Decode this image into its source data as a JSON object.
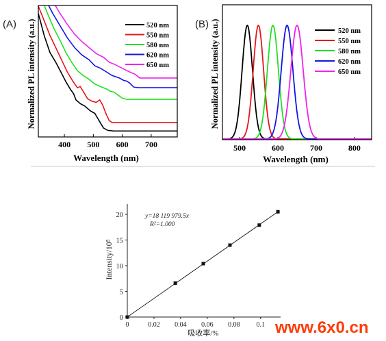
{
  "figure": {
    "panel_a_label": "(A)",
    "panel_b_label": "(B)",
    "watermark": "www.6x0.cn"
  },
  "chart_data": [
    {
      "id": "A",
      "type": "line",
      "title": "",
      "xlabel": "Wavelength (nm)",
      "ylabel": "Normalized PL intensity (a.u.)",
      "xlim": [
        310,
        790
      ],
      "x_ticks": [
        400,
        500,
        600,
        700
      ],
      "y_ticks": [],
      "legend_position": "top-right",
      "grid": false,
      "series": [
        {
          "name": "520 nm",
          "color": "#000000",
          "points": [
            [
              310,
              0.98
            ],
            [
              330,
              0.8
            ],
            [
              350,
              0.66
            ],
            [
              370,
              0.58
            ],
            [
              390,
              0.49
            ],
            [
              405,
              0.42
            ],
            [
              420,
              0.36
            ],
            [
              432,
              0.32
            ],
            [
              440,
              0.27
            ],
            [
              455,
              0.24
            ],
            [
              470,
              0.22
            ],
            [
              490,
              0.18
            ],
            [
              505,
              0.16
            ],
            [
              515,
              0.12
            ],
            [
              525,
              0.08
            ],
            [
              535,
              0.04
            ],
            [
              550,
              0.02
            ],
            [
              570,
              0.015
            ],
            [
              600,
              0.015
            ],
            [
              650,
              0.015
            ],
            [
              700,
              0.015
            ],
            [
              790,
              0.015
            ]
          ]
        },
        {
          "name": "550 nm",
          "color": "#e8141a",
          "points": [
            [
              310,
              1.04
            ],
            [
              330,
              0.92
            ],
            [
              350,
              0.8
            ],
            [
              370,
              0.7
            ],
            [
              390,
              0.6
            ],
            [
              410,
              0.5
            ],
            [
              430,
              0.42
            ],
            [
              445,
              0.37
            ],
            [
              455,
              0.38
            ],
            [
              465,
              0.34
            ],
            [
              480,
              0.28
            ],
            [
              495,
              0.26
            ],
            [
              510,
              0.25
            ],
            [
              522,
              0.27
            ],
            [
              532,
              0.23
            ],
            [
              545,
              0.15
            ],
            [
              555,
              0.1
            ],
            [
              565,
              0.085
            ],
            [
              600,
              0.085
            ],
            [
              650,
              0.085
            ],
            [
              700,
              0.085
            ],
            [
              790,
              0.085
            ]
          ]
        },
        {
          "name": "580 nm",
          "color": "#22e022",
          "points": [
            [
              325,
              1.08
            ],
            [
              345,
              0.96
            ],
            [
              365,
              0.85
            ],
            [
              385,
              0.76
            ],
            [
              405,
              0.66
            ],
            [
              425,
              0.58
            ],
            [
              445,
              0.51
            ],
            [
              465,
              0.47
            ],
            [
              485,
              0.44
            ],
            [
              505,
              0.4
            ],
            [
              525,
              0.38
            ],
            [
              545,
              0.36
            ],
            [
              560,
              0.34
            ],
            [
              570,
              0.335
            ],
            [
              585,
              0.31
            ],
            [
              600,
              0.285
            ],
            [
              615,
              0.275
            ],
            [
              650,
              0.275
            ],
            [
              700,
              0.275
            ],
            [
              790,
              0.275
            ]
          ]
        },
        {
          "name": "620 nm",
          "color": "#1414e6",
          "points": [
            [
              338,
              1.08
            ],
            [
              360,
              0.98
            ],
            [
              385,
              0.88
            ],
            [
              410,
              0.78
            ],
            [
              435,
              0.7
            ],
            [
              460,
              0.64
            ],
            [
              485,
              0.6
            ],
            [
              505,
              0.55
            ],
            [
              525,
              0.53
            ],
            [
              545,
              0.5
            ],
            [
              565,
              0.47
            ],
            [
              590,
              0.45
            ],
            [
              605,
              0.43
            ],
            [
              615,
              0.425
            ],
            [
              625,
              0.41
            ],
            [
              640,
              0.375
            ],
            [
              655,
              0.37
            ],
            [
              700,
              0.37
            ],
            [
              790,
              0.37
            ]
          ]
        },
        {
          "name": "650 nm",
          "color": "#ee22ee",
          "points": [
            [
              360,
              1.08
            ],
            [
              385,
              0.98
            ],
            [
              410,
              0.89
            ],
            [
              435,
              0.81
            ],
            [
              460,
              0.75
            ],
            [
              485,
              0.7
            ],
            [
              510,
              0.65
            ],
            [
              535,
              0.62
            ],
            [
              555,
              0.58
            ],
            [
              575,
              0.56
            ],
            [
              600,
              0.53
            ],
            [
              625,
              0.5
            ],
            [
              645,
              0.48
            ],
            [
              660,
              0.45
            ],
            [
              680,
              0.45
            ],
            [
              700,
              0.45
            ],
            [
              790,
              0.45
            ]
          ]
        }
      ]
    },
    {
      "id": "B",
      "type": "line",
      "title": "",
      "xlabel": "Wavelength (nm)",
      "ylabel": "Normalized PL intensity (a.u.)",
      "xlim": [
        455,
        845
      ],
      "x_ticks": [
        500,
        600,
        700,
        800
      ],
      "y_ticks": [],
      "legend_position": "top-right",
      "grid": false,
      "series": [
        {
          "name": "520 nm",
          "color": "#000000",
          "peak": 520,
          "fwhm": 32
        },
        {
          "name": "550 nm",
          "color": "#e8141a",
          "peak": 549,
          "fwhm": 32
        },
        {
          "name": "580 nm",
          "color": "#22e022",
          "peak": 587,
          "fwhm": 34
        },
        {
          "name": "620 nm",
          "color": "#1414e6",
          "peak": 624,
          "fwhm": 36
        },
        {
          "name": "650 nm",
          "color": "#ee22ee",
          "peak": 650,
          "fwhm": 38
        }
      ]
    },
    {
      "id": "C",
      "type": "scatter",
      "title": "",
      "xlabel": "吸收率/%",
      "ylabel": "Intensity/10⁵",
      "xlim": [
        0,
        0.115
      ],
      "ylim": [
        0,
        22
      ],
      "x_ticks": [
        0,
        0.02,
        0.04,
        0.06,
        0.08,
        0.1
      ],
      "x_tick_labels": [
        "0",
        "0.02",
        "0.04",
        "0.06",
        "0.08",
        "0.1"
      ],
      "y_ticks": [
        0,
        5,
        10,
        15,
        20
      ],
      "y_tick_labels": [
        "0",
        "5",
        "10",
        "15",
        "20"
      ],
      "grid": false,
      "annotation_equation": "y=18 119 979.5x",
      "annotation_r2": "R²=1.000",
      "points": [
        [
          0,
          0
        ],
        [
          0.036,
          6.6
        ],
        [
          0.057,
          10.4
        ],
        [
          0.077,
          14.0
        ],
        [
          0.099,
          17.9
        ],
        [
          0.113,
          20.5
        ]
      ],
      "fit_line": [
        [
          0,
          0
        ],
        [
          0.113,
          20.5
        ]
      ]
    }
  ]
}
